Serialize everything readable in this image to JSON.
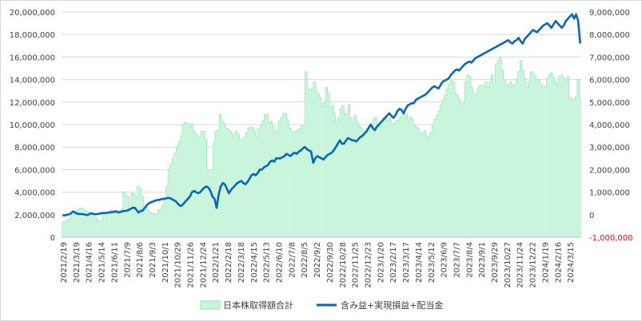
{
  "chart_data": {
    "type": "bar+line",
    "title": "",
    "colors": {
      "bar_fill": "#c8f5dc",
      "bar_stroke": "#8fe0b4",
      "line": "#0a66b8",
      "grid": "#d9d9d9",
      "text": "#404040",
      "negative_label": "#ff0000"
    },
    "y_left": {
      "min": 0,
      "max": 20000000,
      "step": 2000000,
      "tick_labels": [
        "0",
        "2,000,000",
        "4,000,000",
        "6,000,000",
        "8,000,000",
        "10,000,000",
        "12,000,000",
        "14,000,000",
        "16,000,000",
        "18,000,000",
        "20,000,000"
      ]
    },
    "y_right": {
      "min": -1000000,
      "max": 9000000,
      "step": 1000000,
      "tick_labels": [
        "-1,000,000",
        "0",
        "1,000,000",
        "2,000,000",
        "3,000,000",
        "4,000,000",
        "5,000,000",
        "6,000,000",
        "7,000,000",
        "8,000,000",
        "9,000,000"
      ]
    },
    "x_tick_labels": [
      "2021/2/19",
      "2021/3/19",
      "2021/4/16",
      "2021/5/14",
      "2021/6/11",
      "2021/7/9",
      "2021/8/6",
      "2021/9/3",
      "2021/10/1",
      "2021/10/29",
      "2021/11/26",
      "2021/12/24",
      "2022/1/21",
      "2022/2/18",
      "2022/3/18",
      "2022/4/15",
      "2022/5/13",
      "2022/6/10",
      "2022/7/8",
      "2022/8/5",
      "2022/9/2",
      "2022/9/30",
      "2022/10/28",
      "2022/11/25",
      "2022/12/23",
      "2023/1/20",
      "2023/2/17",
      "2023/3/17",
      "2023/4/14",
      "2023/5/12",
      "2023/6/9",
      "2023/7/7",
      "2023/8/4",
      "2023/9/1",
      "2023/9/29",
      "2023/10/27",
      "2023/11/24",
      "2023/12/22",
      "2024/1/19",
      "2024/2/16",
      "2024/3/15"
    ],
    "series": [
      {
        "name": "日本株取得額合計",
        "type": "bar",
        "axis": "left",
        "values": [
          1300000,
          1300000,
          1500000,
          1600000,
          1800000,
          2000000,
          2300000,
          2400000,
          2500000,
          2600000,
          2500000,
          2400000,
          2300000,
          2200000,
          2200000,
          2000000,
          1800000,
          1600000,
          1400000,
          1400000,
          2100000,
          2200000,
          2200000,
          2300000,
          2400000,
          2300000,
          2400000,
          2400000,
          2400000,
          2500000,
          4000000,
          3800000,
          3600000,
          2500000,
          3900000,
          3800000,
          3500000,
          4500000,
          4300000,
          3600000,
          2600000,
          2600000,
          2400000,
          2200000,
          2100000,
          2100000,
          2000000,
          2400000,
          2500000,
          2800000,
          3500000,
          4500000,
          6000000,
          6500000,
          7000000,
          7500000,
          8000000,
          8500000,
          9000000,
          10000000,
          10200000,
          10100000,
          9800000,
          10100000,
          9500000,
          9200000,
          9000000,
          9000000,
          9400000,
          9400000,
          8700000,
          6000000,
          5400000,
          6000000,
          8400000,
          9400000,
          9500000,
          10900000,
          10300000,
          10100000,
          9700000,
          9600000,
          9400000,
          9200000,
          9000000,
          9400000,
          9100000,
          8700000,
          8600000,
          8900000,
          9300000,
          9700000,
          9800000,
          9700000,
          9400000,
          8900000,
          9700000,
          10000000,
          10300000,
          10900000,
          10900000,
          10200000,
          10300000,
          9800000,
          9300000,
          9500000,
          10300000,
          10600000,
          11000000,
          11000000,
          10400000,
          9700000,
          9400000,
          9300000,
          9400000,
          9500000,
          9700000,
          9900000,
          10000000,
          14700000,
          13200000,
          13100000,
          13200000,
          13800000,
          13000000,
          12700000,
          12400000,
          11600000,
          11900000,
          13300000,
          12800000,
          11500000,
          11700000,
          11000000,
          10100000,
          10600000,
          11400000,
          11700000,
          11000000,
          10900000,
          11800000,
          10600000,
          10000000,
          10800000,
          10300000,
          9900000,
          9700000,
          9500000,
          9400000,
          9700000,
          9500000,
          9900000,
          10500000,
          10600000,
          10000000,
          9800000,
          10200000,
          10600000,
          10700000,
          10400000,
          10600000,
          10000000,
          10100000,
          10300000,
          10400000,
          10600000,
          10800000,
          11000000,
          10900000,
          10400000,
          10700000,
          10500000,
          10000000,
          9800000,
          9600000,
          9200000,
          9300000,
          9500000,
          9000000,
          8700000,
          9300000,
          10000000,
          10500000,
          10800000,
          11200000,
          11800000,
          12200000,
          12600000,
          13200000,
          13600000,
          13900000,
          13800000,
          12800000,
          12600000,
          12200000,
          11800000,
          11900000,
          13800000,
          14400000,
          14300000,
          13300000,
          12800000,
          12600000,
          13200000,
          13500000,
          13500000,
          13400000,
          13800000,
          13300000,
          13800000,
          14400000,
          13600000,
          15400000,
          15700000,
          16000000,
          14800000,
          14000000,
          13400000,
          13600000,
          13800000,
          13600000,
          13400000,
          14000000,
          14700000,
          15700000,
          14800000,
          14100000,
          13300000,
          13800000,
          14700000,
          14600000,
          14300000,
          14000000,
          14000000,
          13600000,
          13300000,
          13400000,
          14100000,
          14400000,
          14600000,
          14200000,
          13800000,
          13500000,
          14300000,
          14400000,
          14100000,
          13900000,
          14300000,
          12400000,
          12300000,
          12200000,
          12500000,
          14000000,
          12200000
        ]
      },
      {
        "name": "含み益+実現損益+配当金",
        "type": "line",
        "axis": "right",
        "values": [
          -30000,
          -30000,
          -10000,
          10000,
          50000,
          140000,
          100000,
          40000,
          30000,
          30000,
          20000,
          0,
          -20000,
          20000,
          60000,
          30000,
          20000,
          30000,
          40000,
          70000,
          70000,
          70000,
          90000,
          100000,
          110000,
          130000,
          140000,
          100000,
          110000,
          150000,
          160000,
          170000,
          200000,
          250000,
          300000,
          310000,
          210000,
          90000,
          160000,
          180000,
          300000,
          420000,
          500000,
          550000,
          580000,
          620000,
          650000,
          650000,
          690000,
          700000,
          710000,
          740000,
          740000,
          700000,
          650000,
          600000,
          500000,
          400000,
          400000,
          500000,
          600000,
          700000,
          800000,
          1000000,
          1050000,
          1000000,
          950000,
          1000000,
          1100000,
          1200000,
          1250000,
          1200000,
          1050000,
          800000,
          700000,
          300000,
          900000,
          1250000,
          1400000,
          1350000,
          1150000,
          950000,
          1100000,
          1200000,
          1300000,
          1400000,
          1450000,
          1500000,
          1400000,
          1350000,
          1450000,
          1600000,
          1750000,
          1800000,
          1750000,
          1850000,
          2000000,
          2000000,
          2100000,
          2150000,
          2200000,
          2350000,
          2400000,
          2350000,
          2500000,
          2500000,
          2500000,
          2550000,
          2600000,
          2700000,
          2650000,
          2600000,
          2700000,
          2750000,
          2700000,
          2800000,
          2850000,
          2950000,
          3000000,
          2900000,
          2850000,
          2800000,
          2300000,
          2500000,
          2600000,
          2550000,
          2500000,
          2450000,
          2550000,
          2650000,
          2700000,
          2750000,
          2850000,
          3000000,
          3150000,
          3300000,
          3150000,
          3150000,
          3300000,
          3400000,
          3350000,
          3300000,
          3300000,
          3250000,
          3350000,
          3450000,
          3500000,
          3600000,
          3700000,
          3850000,
          4000000,
          3850000,
          3750000,
          3900000,
          4000000,
          4100000,
          4200000,
          4300000,
          4400000,
          4500000,
          4400000,
          4300000,
          4400000,
          4600000,
          4700000,
          4650000,
          4500000,
          4700000,
          4850000,
          4900000,
          4950000,
          4950000,
          5100000,
          5150000,
          5200000,
          5250000,
          5300000,
          5350000,
          5450000,
          5550000,
          5650000,
          5700000,
          5650000,
          5600000,
          5750000,
          5900000,
          5950000,
          6000000,
          6050000,
          6200000,
          6300000,
          6400000,
          6450000,
          6400000,
          6500000,
          6600000,
          6700000,
          6750000,
          6800000,
          6750000,
          6850000,
          6950000,
          7000000,
          7050000,
          7100000,
          7150000,
          7200000,
          7250000,
          7300000,
          7350000,
          7400000,
          7450000,
          7500000,
          7550000,
          7600000,
          7650000,
          7700000,
          7750000,
          7650000,
          7600000,
          7700000,
          7750000,
          7850000,
          7700000,
          7600000,
          7800000,
          7900000,
          8000000,
          8100000,
          8200000,
          8150000,
          8100000,
          8200000,
          8300000,
          8400000,
          8450000,
          8500000,
          8400000,
          8300000,
          8450000,
          8600000,
          8500000,
          8400000,
          8300000,
          8400000,
          8600000,
          8700000,
          8800000,
          8900000,
          8700000,
          8900000,
          8600000,
          7600000
        ]
      }
    ],
    "legend_position": "bottom"
  }
}
